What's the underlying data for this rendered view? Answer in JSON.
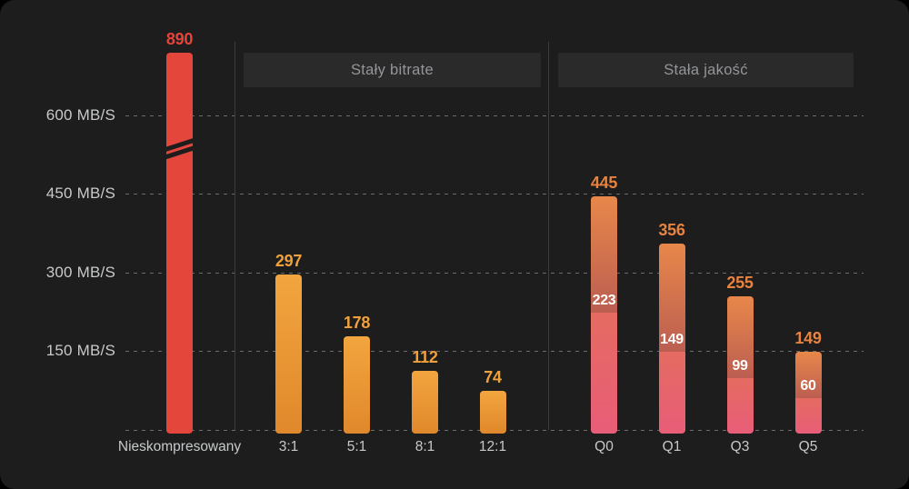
{
  "background": {
    "canvas": "#1d1d1d",
    "outside": "#000000"
  },
  "colors": {
    "canvas_bg": "#1d1d1d",
    "grid": "#6b6b6b",
    "separator": "#3c3c3c",
    "axis_text": "#c7c9cb",
    "section_box_bg": "#2a2a2b",
    "section_box_text": "#939598",
    "uncompressed_bar": "#e5463c",
    "uncompressed_label": "#e8423a",
    "cbr_bar_top": "#f2a53e",
    "cbr_bar_bottom": "#e0882c",
    "cbr_label": "#f0a13b",
    "cq_bar_top": "#e8874a",
    "cq_bar_mid": "#bb5e51",
    "cq_seg_top": "#e56b61",
    "cq_seg_bottom": "#e85d78",
    "cq_label": "#e8823f",
    "inner_label": "#ffffff"
  },
  "sections": [
    {
      "label": "Stały bitrate"
    },
    {
      "label": "Stała jakość"
    }
  ],
  "chart_data": {
    "type": "bar",
    "title": "",
    "xlabel": "",
    "ylabel": "MB/S",
    "ylim": [
      0,
      650
    ],
    "grid": "horizontal-dashed",
    "axis_break": {
      "present": true,
      "on_bar": "Nieskompresowany",
      "between": [
        600,
        890
      ]
    },
    "y_ticks": [
      {
        "label": "600 MB/S",
        "value": 600
      },
      {
        "label": "450 MB/S",
        "value": 450
      },
      {
        "label": "300 MB/S",
        "value": 300
      },
      {
        "label": "150 MB/S",
        "value": 150
      },
      {
        "label": "",
        "value": 0
      }
    ],
    "bars": [
      {
        "category": "Nieskompresowany",
        "value": 890,
        "series": "uncompressed",
        "section": "",
        "axis_break": true
      },
      {
        "category": "3:1",
        "value": 297,
        "series": "cbr",
        "section": "Stały bitrate"
      },
      {
        "category": "5:1",
        "value": 178,
        "series": "cbr",
        "section": "Stały bitrate"
      },
      {
        "category": "8:1",
        "value": 112,
        "series": "cbr",
        "section": "Stały bitrate"
      },
      {
        "category": "12:1",
        "value": 74,
        "series": "cbr",
        "section": "Stały bitrate"
      },
      {
        "category": "Q0",
        "value": 445,
        "inner_value": 223,
        "series": "cq",
        "section": "Stała jakość"
      },
      {
        "category": "Q1",
        "value": 356,
        "inner_value": 149,
        "series": "cq",
        "section": "Stała jakość"
      },
      {
        "category": "Q3",
        "value": 255,
        "inner_value": 99,
        "series": "cq",
        "section": "Stała jakość"
      },
      {
        "category": "Q5",
        "value": 149,
        "inner_value": 60,
        "series": "cq",
        "section": "Stała jakość"
      }
    ]
  }
}
